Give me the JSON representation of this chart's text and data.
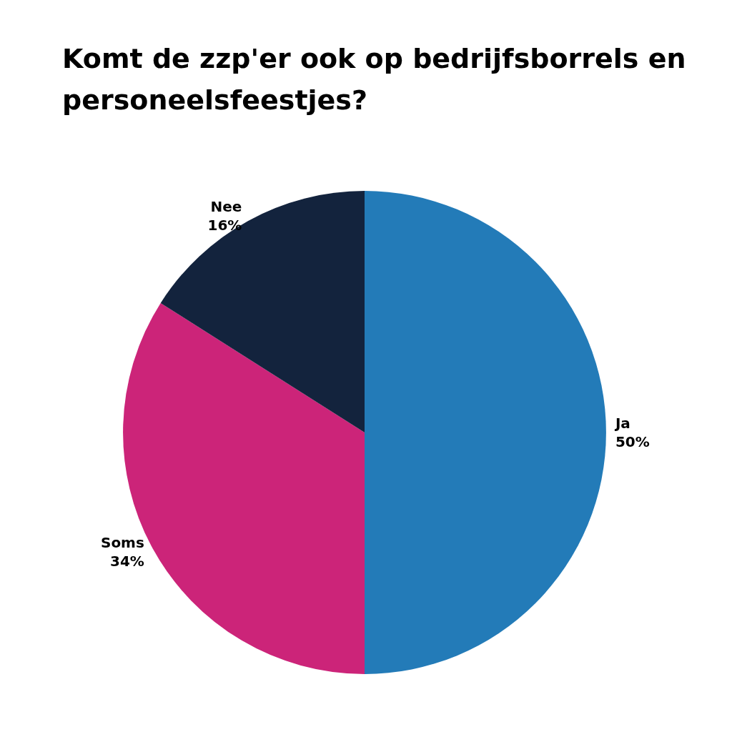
{
  "chart_data": {
    "type": "pie",
    "title": "Komt de zzp'er ook op bedrijfsborrels en personeelsfeestjes?",
    "categories": [
      "Ja",
      "Soms",
      "Nee"
    ],
    "values": [
      50,
      34,
      16
    ],
    "value_labels": [
      "50%",
      "34%",
      "16%"
    ],
    "colors": [
      "#237bb8",
      "#cc2479",
      "#13233d"
    ]
  }
}
